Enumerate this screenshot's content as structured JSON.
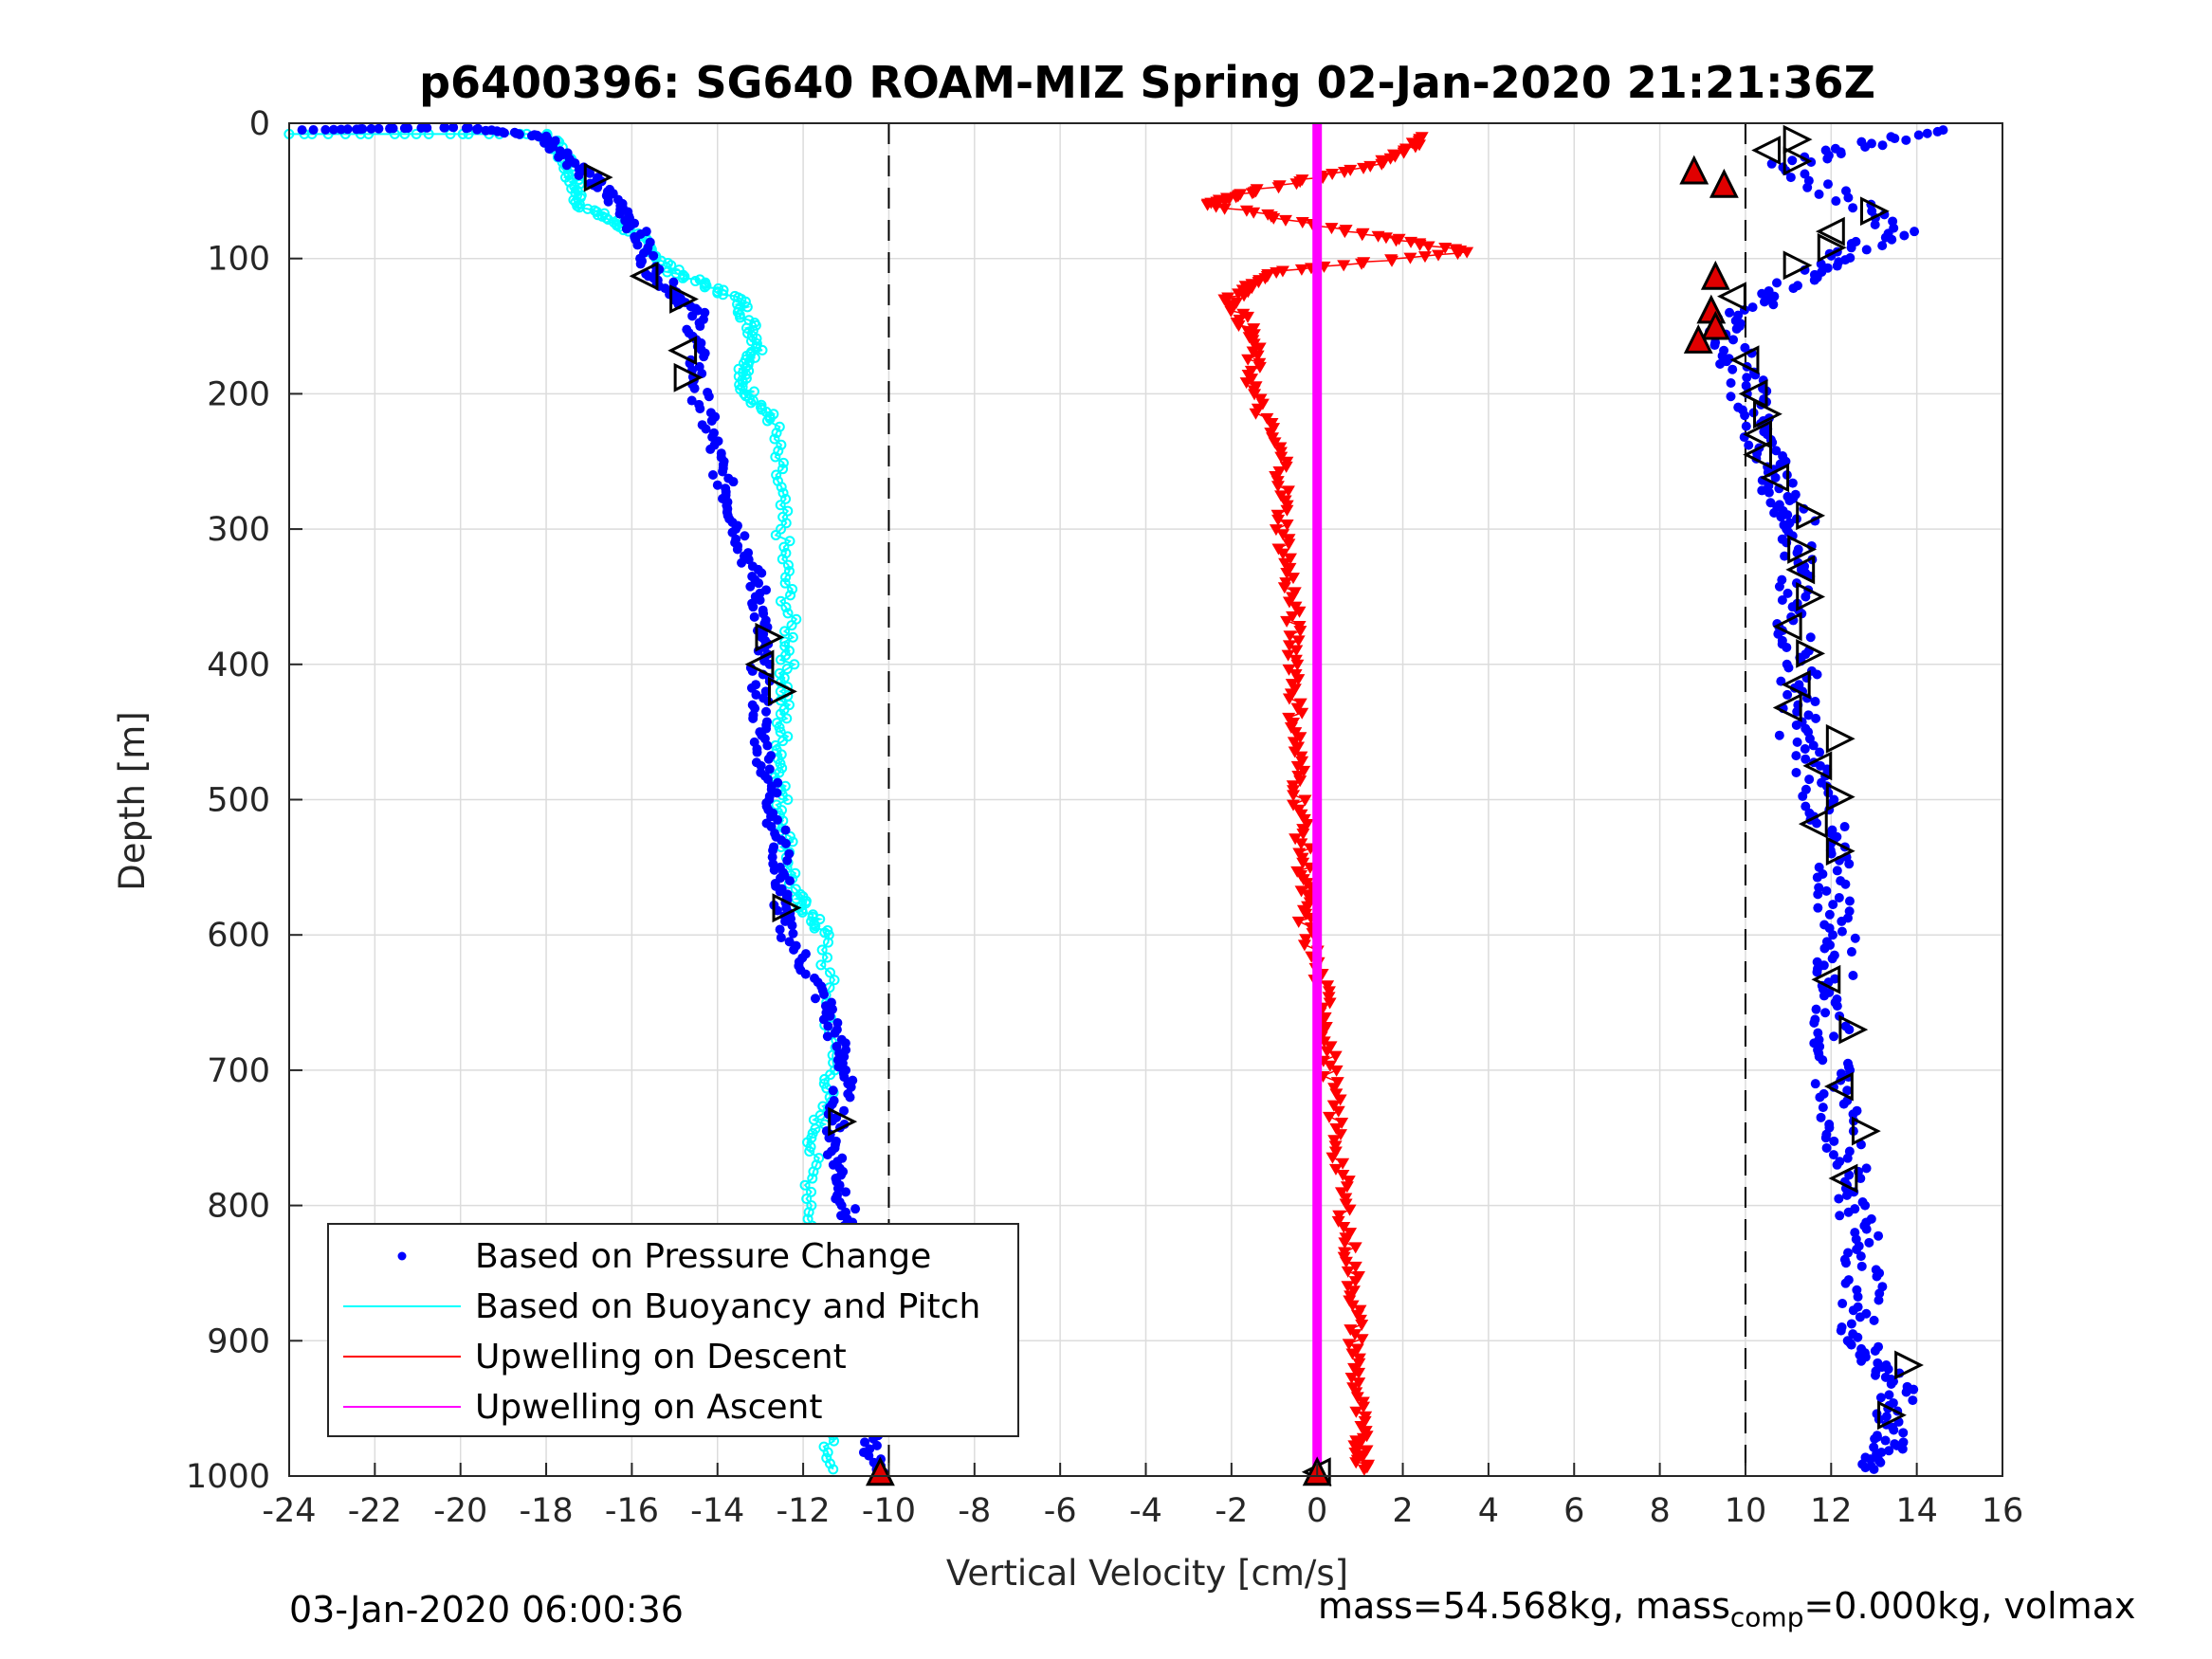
{
  "chart_data": {
    "type": "scatter",
    "title": "p6400396: SG640 ROAM-MIZ Spring 02-Jan-2020 21:21:36Z",
    "xlabel": "Vertical Velocity [cm/s]",
    "ylabel": "Depth [m]",
    "xlim": [
      -24,
      16
    ],
    "ylim": [
      0,
      1000
    ],
    "y_reversed": true,
    "grid": true,
    "xticks": [
      -24,
      -22,
      -20,
      -18,
      -16,
      -14,
      -12,
      -10,
      -8,
      -6,
      -4,
      -2,
      0,
      2,
      4,
      6,
      8,
      10,
      12,
      14,
      16
    ],
    "yticks": [
      0,
      100,
      200,
      300,
      400,
      500,
      600,
      700,
      800,
      900,
      1000
    ],
    "legend_position": "bottom-left",
    "reference_lines_x": [
      -10,
      10
    ],
    "series": [
      {
        "name": "Based on Pressure Change",
        "color": "#0000ff",
        "style": "dots",
        "descent": [
          {
            "x": -23.5,
            "y": 5
          },
          {
            "x": -20,
            "y": 3
          },
          {
            "x": -18,
            "y": 10
          },
          {
            "x": -17,
            "y": 40
          },
          {
            "x": -16,
            "y": 70
          },
          {
            "x": -15.5,
            "y": 110
          },
          {
            "x": -14.5,
            "y": 140
          },
          {
            "x": -14.5,
            "y": 190
          },
          {
            "x": -14,
            "y": 250
          },
          {
            "x": -13.5,
            "y": 300
          },
          {
            "x": -13,
            "y": 350
          },
          {
            "x": -13,
            "y": 400
          },
          {
            "x": -13,
            "y": 450
          },
          {
            "x": -12.7,
            "y": 500
          },
          {
            "x": -12.5,
            "y": 550
          },
          {
            "x": -12.5,
            "y": 590
          },
          {
            "x": -11.5,
            "y": 650
          },
          {
            "x": -11,
            "y": 700
          },
          {
            "x": -11.3,
            "y": 750
          },
          {
            "x": -11,
            "y": 800
          },
          {
            "x": -10.8,
            "y": 850
          },
          {
            "x": -10.5,
            "y": 900
          },
          {
            "x": -10.5,
            "y": 950
          },
          {
            "x": -10.3,
            "y": 1000
          }
        ],
        "ascent": [
          {
            "x": 14.3,
            "y": 5
          },
          {
            "x": 11,
            "y": 30
          },
          {
            "x": 13.5,
            "y": 80
          },
          {
            "x": 11.5,
            "y": 110
          },
          {
            "x": 9.5,
            "y": 150
          },
          {
            "x": 10,
            "y": 190
          },
          {
            "x": 10.3,
            "y": 230
          },
          {
            "x": 10.8,
            "y": 270
          },
          {
            "x": 11.3,
            "y": 300
          },
          {
            "x": 11,
            "y": 350
          },
          {
            "x": 11.3,
            "y": 400
          },
          {
            "x": 11.2,
            "y": 450
          },
          {
            "x": 11.8,
            "y": 500
          },
          {
            "x": 12,
            "y": 550
          },
          {
            "x": 12.2,
            "y": 600
          },
          {
            "x": 12,
            "y": 650
          },
          {
            "x": 12,
            "y": 700
          },
          {
            "x": 12.3,
            "y": 750
          },
          {
            "x": 12.6,
            "y": 800
          },
          {
            "x": 12.8,
            "y": 850
          },
          {
            "x": 12.6,
            "y": 900
          },
          {
            "x": 13.5,
            "y": 930
          },
          {
            "x": 13.4,
            "y": 970
          },
          {
            "x": 13,
            "y": 995
          }
        ]
      },
      {
        "name": "Based on Buoyancy and Pitch",
        "color": "#00ffff",
        "style": "line-circles",
        "points": [
          {
            "x": -24,
            "y": 8
          },
          {
            "x": -18,
            "y": 8
          },
          {
            "x": -17.5,
            "y": 30
          },
          {
            "x": -17.2,
            "y": 60
          },
          {
            "x": -16,
            "y": 80
          },
          {
            "x": -15,
            "y": 110
          },
          {
            "x": -13.5,
            "y": 130
          },
          {
            "x": -13,
            "y": 165
          },
          {
            "x": -13.5,
            "y": 190
          },
          {
            "x": -12.7,
            "y": 220
          },
          {
            "x": -12.5,
            "y": 300
          },
          {
            "x": -12.3,
            "y": 380
          },
          {
            "x": -12.5,
            "y": 440
          },
          {
            "x": -12.5,
            "y": 500
          },
          {
            "x": -12.2,
            "y": 570
          },
          {
            "x": -11.5,
            "y": 600
          },
          {
            "x": -11.3,
            "y": 700
          },
          {
            "x": -11.8,
            "y": 760
          },
          {
            "x": -11.8,
            "y": 850
          },
          {
            "x": -11.5,
            "y": 920
          },
          {
            "x": -11.3,
            "y": 995
          }
        ]
      },
      {
        "name": "Upwelling on Descent",
        "color": "#ff0000",
        "style": "triangles-down",
        "points": [
          {
            "x": 2.5,
            "y": 10
          },
          {
            "x": 1.5,
            "y": 30
          },
          {
            "x": -1.5,
            "y": 50
          },
          {
            "x": -2.5,
            "y": 60
          },
          {
            "x": 0.8,
            "y": 80
          },
          {
            "x": 3.5,
            "y": 95
          },
          {
            "x": -1,
            "y": 110
          },
          {
            "x": -2,
            "y": 130
          },
          {
            "x": -1.5,
            "y": 160
          },
          {
            "x": -1.5,
            "y": 200
          },
          {
            "x": -0.8,
            "y": 250
          },
          {
            "x": -0.8,
            "y": 300
          },
          {
            "x": -0.6,
            "y": 350
          },
          {
            "x": -0.5,
            "y": 400
          },
          {
            "x": -0.5,
            "y": 450
          },
          {
            "x": -0.4,
            "y": 500
          },
          {
            "x": -0.3,
            "y": 550
          },
          {
            "x": -0.3,
            "y": 590
          },
          {
            "x": 0.2,
            "y": 650
          },
          {
            "x": 0.3,
            "y": 700
          },
          {
            "x": 0.5,
            "y": 760
          },
          {
            "x": 0.7,
            "y": 820
          },
          {
            "x": 0.9,
            "y": 870
          },
          {
            "x": 0.9,
            "y": 920
          },
          {
            "x": 1,
            "y": 970
          },
          {
            "x": 1.1,
            "y": 995
          }
        ]
      },
      {
        "name": "Upwelling on Ascent",
        "color": "#ff00ff",
        "style": "line",
        "points": [
          {
            "x": 0,
            "y": 0
          },
          {
            "x": 0,
            "y": 1000
          }
        ]
      }
    ],
    "markers": {
      "open_triangles": [
        {
          "x": -16.8,
          "y": 40,
          "dir": "right"
        },
        {
          "x": -15.7,
          "y": 113,
          "dir": "left"
        },
        {
          "x": -14.8,
          "y": 130,
          "dir": "right"
        },
        {
          "x": -14.8,
          "y": 168,
          "dir": "left"
        },
        {
          "x": -14.7,
          "y": 188,
          "dir": "right"
        },
        {
          "x": -12.8,
          "y": 380,
          "dir": "right"
        },
        {
          "x": -13,
          "y": 400,
          "dir": "left"
        },
        {
          "x": -12.5,
          "y": 420,
          "dir": "right"
        },
        {
          "x": -12.4,
          "y": 580,
          "dir": "right"
        },
        {
          "x": -11.1,
          "y": 738,
          "dir": "right"
        },
        {
          "x": 11.2,
          "y": 12,
          "dir": "right"
        },
        {
          "x": 10.5,
          "y": 20,
          "dir": "left"
        },
        {
          "x": 11.2,
          "y": 28,
          "dir": "right"
        },
        {
          "x": 13,
          "y": 65,
          "dir": "right"
        },
        {
          "x": 12,
          "y": 80,
          "dir": "left"
        },
        {
          "x": 12,
          "y": 92,
          "dir": "right"
        },
        {
          "x": 11.2,
          "y": 105,
          "dir": "right"
        },
        {
          "x": 9.7,
          "y": 128,
          "dir": "left"
        },
        {
          "x": 10,
          "y": 175,
          "dir": "left"
        },
        {
          "x": 10.2,
          "y": 200,
          "dir": "left"
        },
        {
          "x": 10.5,
          "y": 215,
          "dir": "right"
        },
        {
          "x": 10.3,
          "y": 230,
          "dir": "left"
        },
        {
          "x": 10.3,
          "y": 245,
          "dir": "left"
        },
        {
          "x": 10.7,
          "y": 262,
          "dir": "left"
        },
        {
          "x": 11.5,
          "y": 290,
          "dir": "right"
        },
        {
          "x": 11.3,
          "y": 315,
          "dir": "right"
        },
        {
          "x": 11.3,
          "y": 330,
          "dir": "left"
        },
        {
          "x": 11.5,
          "y": 350,
          "dir": "right"
        },
        {
          "x": 11,
          "y": 372,
          "dir": "left"
        },
        {
          "x": 11.5,
          "y": 392,
          "dir": "right"
        },
        {
          "x": 11.2,
          "y": 415,
          "dir": "left"
        },
        {
          "x": 11,
          "y": 432,
          "dir": "left"
        },
        {
          "x": 12.2,
          "y": 455,
          "dir": "right"
        },
        {
          "x": 11.7,
          "y": 475,
          "dir": "left"
        },
        {
          "x": 12.2,
          "y": 498,
          "dir": "right"
        },
        {
          "x": 11.6,
          "y": 518,
          "dir": "left"
        },
        {
          "x": 12.2,
          "y": 538,
          "dir": "right"
        },
        {
          "x": 11.9,
          "y": 633,
          "dir": "left"
        },
        {
          "x": 12.5,
          "y": 670,
          "dir": "right"
        },
        {
          "x": 12.2,
          "y": 712,
          "dir": "left"
        },
        {
          "x": 12.8,
          "y": 745,
          "dir": "right"
        },
        {
          "x": 12.3,
          "y": 780,
          "dir": "left"
        },
        {
          "x": 13.8,
          "y": 918,
          "dir": "right"
        },
        {
          "x": 13.4,
          "y": 955,
          "dir": "right"
        },
        {
          "x": 0,
          "y": 997,
          "dir": "left"
        }
      ],
      "red_triangles": [
        {
          "x": 8.8,
          "y": 35
        },
        {
          "x": 9.5,
          "y": 45
        },
        {
          "x": 9.3,
          "y": 113
        },
        {
          "x": 9.2,
          "y": 138
        },
        {
          "x": 9.3,
          "y": 150
        },
        {
          "x": 8.9,
          "y": 160
        },
        {
          "x": -10.2,
          "y": 997
        },
        {
          "x": 0,
          "y": 997
        }
      ]
    }
  },
  "footer": {
    "left_text": "03-Jan-2020 06:00:36",
    "right_text_1": "mass=54.568kg, mass",
    "right_sub": "comp",
    "right_text_2": "=0.000kg, volmax"
  }
}
